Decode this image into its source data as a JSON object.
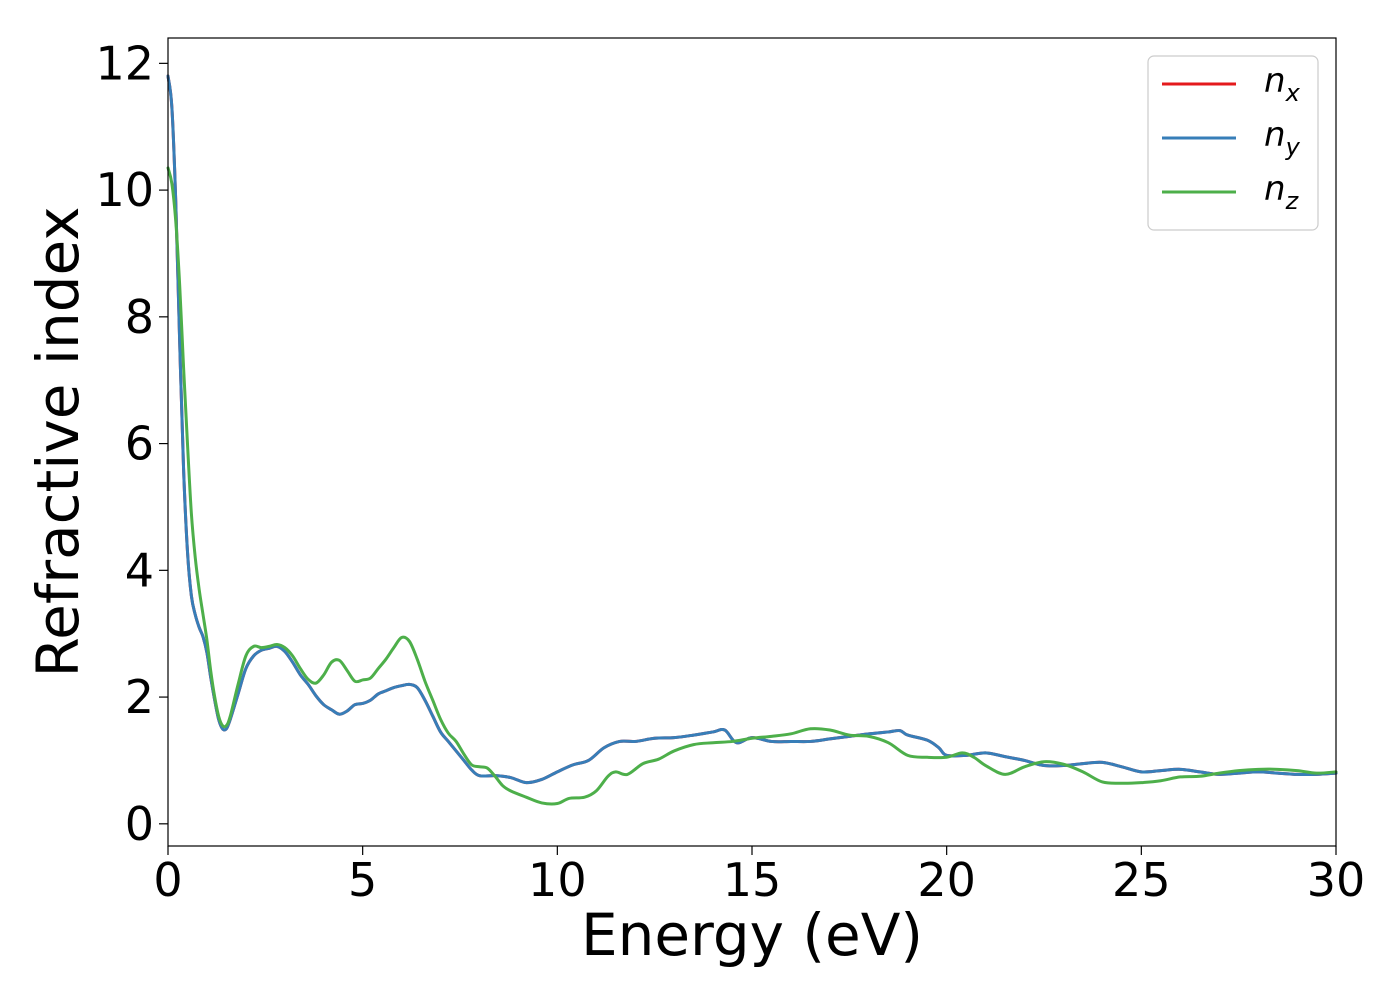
{
  "chart_data": {
    "type": "line",
    "xlabel": "Energy (eV)",
    "ylabel": "Refractive index",
    "xlim": [
      0,
      30
    ],
    "ylim": [
      -0.35,
      12.4
    ],
    "x_ticks": [
      0,
      5,
      10,
      15,
      20,
      25,
      30
    ],
    "y_ticks": [
      0,
      2,
      4,
      6,
      8,
      10,
      12
    ],
    "grid": false,
    "legend_position": "top-right",
    "series": [
      {
        "name": "n_x",
        "legend_main": "n",
        "legend_sub": "x",
        "color": "#e41a1c",
        "points": [
          [
            0.0,
            11.8
          ],
          [
            0.1,
            11.3
          ],
          [
            0.2,
            9.8
          ],
          [
            0.3,
            7.6
          ],
          [
            0.4,
            5.6
          ],
          [
            0.5,
            4.3
          ],
          [
            0.6,
            3.6
          ],
          [
            0.7,
            3.3
          ],
          [
            0.8,
            3.1
          ],
          [
            0.9,
            2.95
          ],
          [
            1.0,
            2.7
          ],
          [
            1.1,
            2.3
          ],
          [
            1.2,
            1.95
          ],
          [
            1.3,
            1.65
          ],
          [
            1.4,
            1.5
          ],
          [
            1.5,
            1.5
          ],
          [
            1.6,
            1.65
          ],
          [
            1.8,
            2.05
          ],
          [
            2.0,
            2.45
          ],
          [
            2.2,
            2.65
          ],
          [
            2.4,
            2.74
          ],
          [
            2.6,
            2.77
          ],
          [
            2.8,
            2.8
          ],
          [
            3.0,
            2.72
          ],
          [
            3.2,
            2.55
          ],
          [
            3.4,
            2.35
          ],
          [
            3.6,
            2.2
          ],
          [
            3.8,
            2.02
          ],
          [
            4.0,
            1.88
          ],
          [
            4.2,
            1.8
          ],
          [
            4.4,
            1.73
          ],
          [
            4.6,
            1.78
          ],
          [
            4.8,
            1.88
          ],
          [
            5.0,
            1.9
          ],
          [
            5.2,
            1.95
          ],
          [
            5.4,
            2.05
          ],
          [
            5.6,
            2.1
          ],
          [
            5.8,
            2.15
          ],
          [
            6.0,
            2.18
          ],
          [
            6.2,
            2.2
          ],
          [
            6.4,
            2.15
          ],
          [
            6.6,
            1.95
          ],
          [
            6.8,
            1.7
          ],
          [
            7.0,
            1.45
          ],
          [
            7.2,
            1.3
          ],
          [
            7.4,
            1.15
          ],
          [
            7.6,
            1.0
          ],
          [
            7.8,
            0.85
          ],
          [
            8.0,
            0.76
          ],
          [
            8.4,
            0.76
          ],
          [
            8.8,
            0.73
          ],
          [
            9.2,
            0.65
          ],
          [
            9.6,
            0.7
          ],
          [
            10.0,
            0.82
          ],
          [
            10.4,
            0.93
          ],
          [
            10.8,
            1.0
          ],
          [
            11.2,
            1.2
          ],
          [
            11.6,
            1.3
          ],
          [
            12.0,
            1.3
          ],
          [
            12.5,
            1.35
          ],
          [
            13.0,
            1.36
          ],
          [
            13.5,
            1.4
          ],
          [
            14.0,
            1.45
          ],
          [
            14.3,
            1.48
          ],
          [
            14.6,
            1.28
          ],
          [
            15.0,
            1.36
          ],
          [
            15.5,
            1.3
          ],
          [
            16.0,
            1.3
          ],
          [
            16.5,
            1.3
          ],
          [
            17.0,
            1.34
          ],
          [
            17.5,
            1.38
          ],
          [
            18.0,
            1.42
          ],
          [
            18.5,
            1.45
          ],
          [
            18.8,
            1.47
          ],
          [
            19.0,
            1.4
          ],
          [
            19.5,
            1.32
          ],
          [
            19.8,
            1.2
          ],
          [
            20.0,
            1.08
          ],
          [
            20.5,
            1.08
          ],
          [
            21.0,
            1.12
          ],
          [
            21.5,
            1.06
          ],
          [
            22.0,
            1.0
          ],
          [
            22.5,
            0.92
          ],
          [
            23.0,
            0.92
          ],
          [
            23.5,
            0.95
          ],
          [
            24.0,
            0.97
          ],
          [
            24.5,
            0.9
          ],
          [
            25.0,
            0.82
          ],
          [
            25.5,
            0.84
          ],
          [
            26.0,
            0.86
          ],
          [
            26.5,
            0.82
          ],
          [
            27.0,
            0.78
          ],
          [
            27.5,
            0.8
          ],
          [
            28.0,
            0.82
          ],
          [
            28.5,
            0.8
          ],
          [
            29.0,
            0.78
          ],
          [
            29.5,
            0.78
          ],
          [
            30.0,
            0.8
          ]
        ]
      },
      {
        "name": "n_y",
        "legend_main": "n",
        "legend_sub": "y",
        "color": "#377eb8",
        "points": [
          [
            0.0,
            11.8
          ],
          [
            0.1,
            11.3
          ],
          [
            0.2,
            9.8
          ],
          [
            0.3,
            7.6
          ],
          [
            0.4,
            5.6
          ],
          [
            0.5,
            4.3
          ],
          [
            0.6,
            3.6
          ],
          [
            0.7,
            3.3
          ],
          [
            0.8,
            3.1
          ],
          [
            0.9,
            2.95
          ],
          [
            1.0,
            2.7
          ],
          [
            1.1,
            2.3
          ],
          [
            1.2,
            1.95
          ],
          [
            1.3,
            1.65
          ],
          [
            1.4,
            1.5
          ],
          [
            1.5,
            1.5
          ],
          [
            1.6,
            1.65
          ],
          [
            1.8,
            2.05
          ],
          [
            2.0,
            2.45
          ],
          [
            2.2,
            2.65
          ],
          [
            2.4,
            2.74
          ],
          [
            2.6,
            2.77
          ],
          [
            2.8,
            2.8
          ],
          [
            3.0,
            2.72
          ],
          [
            3.2,
            2.55
          ],
          [
            3.4,
            2.35
          ],
          [
            3.6,
            2.2
          ],
          [
            3.8,
            2.02
          ],
          [
            4.0,
            1.88
          ],
          [
            4.2,
            1.8
          ],
          [
            4.4,
            1.73
          ],
          [
            4.6,
            1.78
          ],
          [
            4.8,
            1.88
          ],
          [
            5.0,
            1.9
          ],
          [
            5.2,
            1.95
          ],
          [
            5.4,
            2.05
          ],
          [
            5.6,
            2.1
          ],
          [
            5.8,
            2.15
          ],
          [
            6.0,
            2.18
          ],
          [
            6.2,
            2.2
          ],
          [
            6.4,
            2.15
          ],
          [
            6.6,
            1.95
          ],
          [
            6.8,
            1.7
          ],
          [
            7.0,
            1.45
          ],
          [
            7.2,
            1.3
          ],
          [
            7.4,
            1.15
          ],
          [
            7.6,
            1.0
          ],
          [
            7.8,
            0.85
          ],
          [
            8.0,
            0.76
          ],
          [
            8.4,
            0.76
          ],
          [
            8.8,
            0.73
          ],
          [
            9.2,
            0.65
          ],
          [
            9.6,
            0.7
          ],
          [
            10.0,
            0.82
          ],
          [
            10.4,
            0.93
          ],
          [
            10.8,
            1.0
          ],
          [
            11.2,
            1.2
          ],
          [
            11.6,
            1.3
          ],
          [
            12.0,
            1.3
          ],
          [
            12.5,
            1.35
          ],
          [
            13.0,
            1.36
          ],
          [
            13.5,
            1.4
          ],
          [
            14.0,
            1.45
          ],
          [
            14.3,
            1.48
          ],
          [
            14.6,
            1.28
          ],
          [
            15.0,
            1.36
          ],
          [
            15.5,
            1.3
          ],
          [
            16.0,
            1.3
          ],
          [
            16.5,
            1.3
          ],
          [
            17.0,
            1.34
          ],
          [
            17.5,
            1.38
          ],
          [
            18.0,
            1.42
          ],
          [
            18.5,
            1.45
          ],
          [
            18.8,
            1.47
          ],
          [
            19.0,
            1.4
          ],
          [
            19.5,
            1.32
          ],
          [
            19.8,
            1.2
          ],
          [
            20.0,
            1.08
          ],
          [
            20.5,
            1.08
          ],
          [
            21.0,
            1.12
          ],
          [
            21.5,
            1.06
          ],
          [
            22.0,
            1.0
          ],
          [
            22.5,
            0.92
          ],
          [
            23.0,
            0.92
          ],
          [
            23.5,
            0.95
          ],
          [
            24.0,
            0.97
          ],
          [
            24.5,
            0.9
          ],
          [
            25.0,
            0.82
          ],
          [
            25.5,
            0.84
          ],
          [
            26.0,
            0.86
          ],
          [
            26.5,
            0.82
          ],
          [
            27.0,
            0.78
          ],
          [
            27.5,
            0.8
          ],
          [
            28.0,
            0.82
          ],
          [
            28.5,
            0.8
          ],
          [
            29.0,
            0.78
          ],
          [
            29.5,
            0.78
          ],
          [
            30.0,
            0.8
          ]
        ]
      },
      {
        "name": "n_z",
        "legend_main": "n",
        "legend_sub": "z",
        "color": "#4daf4a",
        "points": [
          [
            0.0,
            10.35
          ],
          [
            0.1,
            10.1
          ],
          [
            0.2,
            9.5
          ],
          [
            0.3,
            8.5
          ],
          [
            0.4,
            7.2
          ],
          [
            0.5,
            6.0
          ],
          [
            0.6,
            4.9
          ],
          [
            0.7,
            4.2
          ],
          [
            0.8,
            3.7
          ],
          [
            0.9,
            3.3
          ],
          [
            1.0,
            2.9
          ],
          [
            1.1,
            2.4
          ],
          [
            1.2,
            2.0
          ],
          [
            1.3,
            1.7
          ],
          [
            1.4,
            1.55
          ],
          [
            1.5,
            1.55
          ],
          [
            1.6,
            1.7
          ],
          [
            1.8,
            2.2
          ],
          [
            2.0,
            2.65
          ],
          [
            2.2,
            2.8
          ],
          [
            2.4,
            2.78
          ],
          [
            2.6,
            2.8
          ],
          [
            2.8,
            2.83
          ],
          [
            3.0,
            2.78
          ],
          [
            3.2,
            2.65
          ],
          [
            3.4,
            2.45
          ],
          [
            3.6,
            2.28
          ],
          [
            3.8,
            2.22
          ],
          [
            4.0,
            2.35
          ],
          [
            4.2,
            2.55
          ],
          [
            4.4,
            2.58
          ],
          [
            4.6,
            2.42
          ],
          [
            4.8,
            2.25
          ],
          [
            5.0,
            2.27
          ],
          [
            5.2,
            2.3
          ],
          [
            5.4,
            2.45
          ],
          [
            5.6,
            2.6
          ],
          [
            5.8,
            2.78
          ],
          [
            6.0,
            2.94
          ],
          [
            6.2,
            2.88
          ],
          [
            6.4,
            2.6
          ],
          [
            6.6,
            2.25
          ],
          [
            6.8,
            1.95
          ],
          [
            7.0,
            1.65
          ],
          [
            7.2,
            1.43
          ],
          [
            7.4,
            1.3
          ],
          [
            7.6,
            1.1
          ],
          [
            7.8,
            0.93
          ],
          [
            8.0,
            0.9
          ],
          [
            8.2,
            0.88
          ],
          [
            8.4,
            0.75
          ],
          [
            8.6,
            0.6
          ],
          [
            8.8,
            0.52
          ],
          [
            9.2,
            0.42
          ],
          [
            9.6,
            0.33
          ],
          [
            10.0,
            0.32
          ],
          [
            10.3,
            0.4
          ],
          [
            10.7,
            0.42
          ],
          [
            11.0,
            0.52
          ],
          [
            11.3,
            0.75
          ],
          [
            11.5,
            0.82
          ],
          [
            11.8,
            0.78
          ],
          [
            12.2,
            0.95
          ],
          [
            12.6,
            1.02
          ],
          [
            13.0,
            1.15
          ],
          [
            13.5,
            1.25
          ],
          [
            14.0,
            1.28
          ],
          [
            14.5,
            1.3
          ],
          [
            15.0,
            1.35
          ],
          [
            15.5,
            1.38
          ],
          [
            16.0,
            1.42
          ],
          [
            16.5,
            1.5
          ],
          [
            17.0,
            1.48
          ],
          [
            17.5,
            1.4
          ],
          [
            18.0,
            1.38
          ],
          [
            18.5,
            1.28
          ],
          [
            19.0,
            1.08
          ],
          [
            19.5,
            1.05
          ],
          [
            20.0,
            1.05
          ],
          [
            20.4,
            1.12
          ],
          [
            20.7,
            1.05
          ],
          [
            21.0,
            0.92
          ],
          [
            21.5,
            0.78
          ],
          [
            22.0,
            0.9
          ],
          [
            22.5,
            0.98
          ],
          [
            23.0,
            0.94
          ],
          [
            23.5,
            0.82
          ],
          [
            24.0,
            0.66
          ],
          [
            24.5,
            0.64
          ],
          [
            25.0,
            0.65
          ],
          [
            25.5,
            0.68
          ],
          [
            26.0,
            0.74
          ],
          [
            26.5,
            0.75
          ],
          [
            27.0,
            0.8
          ],
          [
            27.5,
            0.84
          ],
          [
            28.0,
            0.86
          ],
          [
            28.5,
            0.86
          ],
          [
            29.0,
            0.84
          ],
          [
            29.5,
            0.8
          ],
          [
            30.0,
            0.82
          ]
        ]
      }
    ]
  }
}
